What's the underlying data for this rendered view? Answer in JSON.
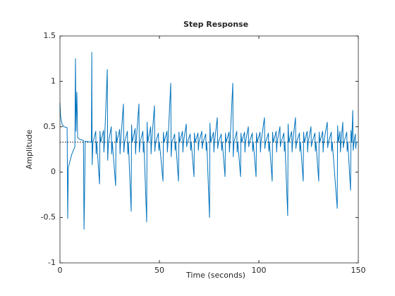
{
  "chart_data": {
    "type": "line",
    "title": "Step Response",
    "x_label": "Time (seconds)",
    "y_label": "Amplitude",
    "color": "#0072bd",
    "reference_line": 0.33,
    "xlim": [
      0,
      150
    ],
    "ylim": [
      -1,
      1.5
    ],
    "xticks": [
      0,
      50,
      100,
      150
    ],
    "yticks": [
      -1,
      -0.5,
      0,
      0.5,
      1,
      1.5
    ],
    "x": [
      0,
      0.3,
      1,
      2,
      3.6,
      3.9,
      4.2,
      5,
      6,
      7.5,
      7.8,
      8.1,
      8.5,
      8.9,
      10,
      11.8,
      12.1,
      12.3,
      12.7,
      15.8,
      16,
      16.2,
      16.6,
      18,
      18.2,
      18.5,
      19.9,
      20.1,
      20.5,
      21.9,
      22.1,
      22.4,
      23.8,
      24,
      24.4,
      25.8,
      26,
      26.3,
      28,
      28.2,
      28.6,
      30,
      30.2,
      30.5,
      31.9,
      32.1,
      32.5,
      33.9,
      34.1,
      34.4,
      35.8,
      36,
      36.4,
      37.8,
      38,
      38.3,
      39.7,
      39.9,
      40.3,
      41.7,
      41.9,
      42.2,
      43.6,
      43.8,
      44.2,
      45.6,
      45.8,
      46.1,
      47.5,
      47.7,
      48.1,
      49.5,
      49.7,
      50,
      51.8,
      52,
      52.4,
      53.8,
      54,
      54.3,
      55.7,
      55.9,
      56.3,
      57.7,
      57.9,
      58.2,
      59.6,
      59.8,
      60.2,
      61.6,
      61.8,
      62.1,
      63.5,
      63.7,
      64.1,
      65.5,
      65.7,
      66,
      67.4,
      67.6,
      68,
      69.4,
      69.6,
      69.9,
      71.3,
      71.5,
      71.9,
      73.3,
      73.5,
      73.8,
      75.2,
      75.4,
      75.8,
      77.2,
      77.4,
      77.7,
      79.1,
      79.3,
      79.7,
      81.1,
      81.3,
      81.6,
      83,
      83.2,
      83.6,
      85,
      85.2,
      85.5,
      86.9,
      87.1,
      87.5,
      88.9,
      89.1,
      89.4,
      90.8,
      91,
      91.4,
      92.8,
      93,
      93.3,
      94.7,
      94.9,
      95.3,
      96.7,
      96.9,
      97.2,
      98.6,
      98.8,
      99.2,
      100.6,
      100.8,
      101.1,
      102.8,
      103,
      103.4,
      104.8,
      105,
      105.3,
      106.7,
      106.9,
      107.3,
      108.7,
      108.9,
      109.2,
      110.6,
      110.8,
      111.2,
      112.6,
      112.8,
      113.1,
      114.5,
      114.7,
      115.1,
      116.5,
      116.7,
      117,
      118.4,
      118.6,
      119,
      120.4,
      120.6,
      120.9,
      122.3,
      122.5,
      122.9,
      124.3,
      124.5,
      124.8,
      126.2,
      126.4,
      126.8,
      128.2,
      128.4,
      128.7,
      130.1,
      130.3,
      130.7,
      132.1,
      132.3,
      132.6,
      134.4,
      134.6,
      135,
      136.4,
      136.6,
      136.9,
      139.4,
      139.6,
      140,
      140.8,
      141,
      141.3,
      142.2,
      142.4,
      142.8,
      144.2,
      144.4,
      144.7,
      146.1,
      146.3,
      146.7,
      147.2,
      147.4,
      147.8,
      148.5,
      148.7,
      149,
      150
    ],
    "values": [
      0.77,
      0.62,
      0.53,
      0.5,
      0.49,
      -0.51,
      0.05,
      0.12,
      0.2,
      0.28,
      1.25,
      0.45,
      0.88,
      0.38,
      0.36,
      0.35,
      -0.63,
      -0.37,
      0.34,
      0.33,
      1.32,
      0.08,
      0.33,
      0.45,
      0.2,
      0.33,
      -0.13,
      0.45,
      0.33,
      0.46,
      0.22,
      0.33,
      1.13,
      0.13,
      0.33,
      0.5,
      0.2,
      0.33,
      -0.15,
      0.45,
      0.33,
      0.47,
      0.2,
      0.33,
      0.75,
      0.22,
      0.33,
      0.45,
      0.2,
      0.33,
      -0.43,
      0.52,
      0.33,
      0.48,
      0.2,
      0.33,
      0.75,
      0.22,
      0.33,
      0.45,
      0.22,
      0.33,
      -0.55,
      0.55,
      0.33,
      0.5,
      0.2,
      0.33,
      0.73,
      0.23,
      0.33,
      0.43,
      0.24,
      0.33,
      -0.1,
      0.44,
      0.33,
      0.45,
      0.22,
      0.33,
      0.98,
      0.17,
      0.33,
      0.42,
      0.24,
      0.33,
      -0.1,
      0.44,
      0.33,
      0.45,
      0.22,
      0.33,
      0.53,
      0.28,
      0.33,
      0.42,
      0.24,
      0.33,
      -0.05,
      0.43,
      0.33,
      0.43,
      0.24,
      0.33,
      0.45,
      0.26,
      0.33,
      0.42,
      0.24,
      0.33,
      -0.5,
      0.54,
      0.33,
      0.44,
      0.22,
      0.33,
      0.6,
      0.26,
      0.33,
      0.42,
      0.24,
      0.33,
      -0.05,
      0.43,
      0.33,
      0.44,
      0.22,
      0.33,
      0.98,
      0.17,
      0.33,
      0.45,
      0.22,
      0.33,
      -0.05,
      0.43,
      0.33,
      0.44,
      0.22,
      0.33,
      0.5,
      0.28,
      0.33,
      0.43,
      0.23,
      0.33,
      -0.05,
      0.43,
      0.33,
      0.44,
      0.22,
      0.33,
      0.6,
      0.26,
      0.33,
      0.43,
      0.23,
      0.33,
      -0.1,
      0.44,
      0.33,
      0.45,
      0.22,
      0.33,
      0.5,
      0.28,
      0.33,
      0.43,
      0.23,
      0.33,
      -0.48,
      0.53,
      0.33,
      0.45,
      0.22,
      0.33,
      0.6,
      0.26,
      0.33,
      0.43,
      0.23,
      0.33,
      -0.1,
      0.44,
      0.33,
      0.45,
      0.22,
      0.33,
      0.5,
      0.28,
      0.33,
      0.43,
      0.23,
      0.33,
      -0.1,
      0.44,
      0.33,
      0.45,
      0.22,
      0.33,
      0.55,
      0.27,
      0.33,
      0.44,
      0.23,
      0.33,
      -0.4,
      0.51,
      0.33,
      0.45,
      0.22,
      0.33,
      0.55,
      0.27,
      0.33,
      0.44,
      0.23,
      0.33,
      -0.2,
      0.46,
      0.33,
      0.68,
      0.24,
      0.33,
      0.42,
      0.26,
      0.33,
      0.33
    ]
  }
}
